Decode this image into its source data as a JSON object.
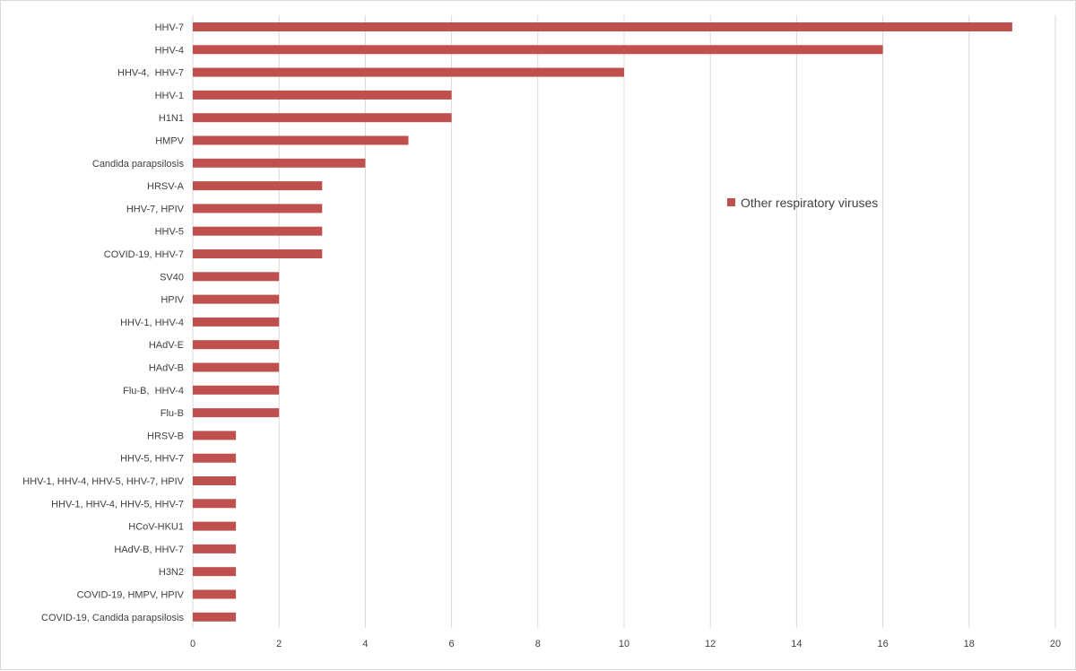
{
  "chart_data": {
    "type": "bar",
    "orientation": "horizontal",
    "categories": [
      "HHV-7",
      "HHV-4",
      "HHV-4,  HHV-7",
      "HHV-1",
      "H1N1",
      "HMPV",
      "Candida parapsilosis",
      "HRSV-A",
      "HHV-7, HPIV",
      "HHV-5",
      "COVID-19, HHV-7",
      "SV40",
      "HPIV",
      "HHV-1, HHV-4",
      "HAdV-E",
      "HAdV-B",
      "Flu-B,  HHV-4",
      "Flu-B",
      "HRSV-B",
      "HHV-5, HHV-7",
      "HHV-1, HHV-4, HHV-5, HHV-7, HPIV",
      "HHV-1, HHV-4, HHV-5, HHV-7",
      "HCoV-HKU1",
      "HAdV-B, HHV-7",
      "H3N2",
      "COVID-19, HMPV, HPIV",
      "COVID-19, Candida parapsilosis"
    ],
    "series": [
      {
        "name": "Other respiratory viruses",
        "color": "#c0504d",
        "values": [
          19,
          16,
          10,
          6,
          6,
          5,
          4,
          3,
          3,
          3,
          3,
          2,
          2,
          2,
          2,
          2,
          2,
          2,
          1,
          1,
          1,
          1,
          1,
          1,
          1,
          1,
          1
        ]
      }
    ],
    "xlim": [
      0,
      20
    ],
    "xticks": [
      0,
      2,
      4,
      6,
      8,
      10,
      12,
      14,
      16,
      18,
      20
    ],
    "grid": "vertical",
    "legend_position": "right-middle"
  }
}
